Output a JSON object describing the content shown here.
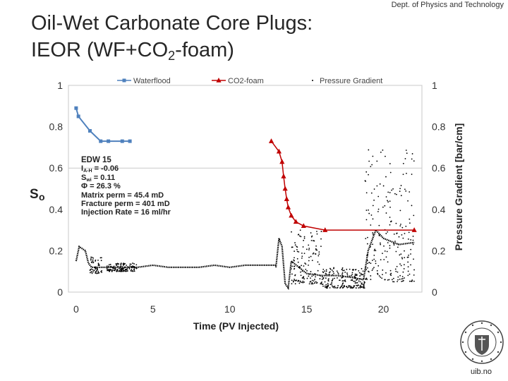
{
  "header": {
    "dept": "Dept. of Physics and Technology",
    "title_line1": "Oil-Wet Carbonate Core Plugs:",
    "title_line2_pre": "IEOR (WF+CO",
    "title_line2_sub": "2",
    "title_line2_post": "-foam)"
  },
  "annotation": {
    "heading": "EDW 15",
    "iah_label": "I",
    "iah_sub": "A-H",
    "iah_value": " = -0.06",
    "swi_label": "S",
    "swi_sub": "wi",
    "swi_value": " = 0.11",
    "porosity": "Φ = 26.3 %",
    "matrix_perm": "Matrix perm = 45.4 mD",
    "fracture_perm": "Fracture perm = 401 mD",
    "injection_rate": "Injection Rate = 16 ml/hr"
  },
  "footer": {
    "site": "uib.no"
  },
  "colors": {
    "waterflood": "#4F81BD",
    "co2foam": "#C00000",
    "pressure": "#000000"
  },
  "chart_data": {
    "type": "line",
    "xlabel": "Time (PV Injected)",
    "ylabel": "So",
    "y2label": "Pressure Gradient [bar/cm]",
    "xlim": [
      -0.5,
      22.5
    ],
    "ylim": [
      0,
      1
    ],
    "y2lim": [
      0,
      1
    ],
    "x_ticks": [
      0,
      5,
      10,
      15,
      20
    ],
    "x_tick_labels": [
      "0",
      "5",
      "10",
      "15",
      "20"
    ],
    "y_ticks": [
      0,
      0.2,
      0.4,
      0.6,
      0.8,
      1
    ],
    "y_tick_labels": [
      "0",
      "0.2",
      "0.4",
      "0.6",
      "0.8",
      "1"
    ],
    "y2_ticks": [
      0,
      0.2,
      0.4,
      0.6,
      0.8,
      1
    ],
    "y2_tick_labels": [
      "0",
      "0.2",
      "0.4",
      "0.6",
      "0.8",
      "1"
    ],
    "legend_position": "top",
    "series": [
      {
        "name": "Waterflood",
        "marker": "square",
        "x": [
          0,
          0.15,
          0.9,
          1.6,
          2.1,
          3.0,
          3.5
        ],
        "y": [
          0.89,
          0.85,
          0.78,
          0.73,
          0.73,
          0.73,
          0.73
        ]
      },
      {
        "name": "CO2-foam",
        "marker": "triangle",
        "x": [
          12.7,
          13.2,
          13.4,
          13.5,
          13.6,
          13.7,
          13.8,
          14.0,
          14.3,
          14.8,
          16.2,
          22.0
        ],
        "y": [
          0.73,
          0.68,
          0.63,
          0.56,
          0.5,
          0.45,
          0.41,
          0.37,
          0.34,
          0.32,
          0.3,
          0.3
        ]
      },
      {
        "name": "Pressure Gradient",
        "marker": "dot",
        "segments": [
          {
            "x": [
              0.0,
              0.2,
              0.4,
              0.6,
              0.8,
              1.0,
              1.5,
              2.0,
              3.0,
              4.0,
              5.0,
              6.0,
              7.0,
              8.0,
              9.0,
              10.0,
              11.0,
              12.0,
              13.0
            ],
            "y": [
              0.15,
              0.22,
              0.21,
              0.2,
              0.14,
              0.12,
              0.12,
              0.12,
              0.12,
              0.12,
              0.13,
              0.12,
              0.12,
              0.12,
              0.13,
              0.12,
              0.13,
              0.13,
              0.13
            ]
          },
          {
            "x": [
              13.0,
              13.2,
              13.4,
              13.6,
              13.8,
              14.0,
              14.5,
              15.0,
              16.0,
              17.0,
              18.0,
              18.7,
              19.0,
              19.5,
              20.0,
              21.0,
              22.0
            ],
            "y": [
              0.12,
              0.26,
              0.22,
              0.04,
              0.02,
              0.15,
              0.12,
              0.09,
              0.08,
              0.08,
              0.07,
              0.06,
              0.2,
              0.3,
              0.26,
              0.23,
              0.24
            ]
          }
        ],
        "scatter_ranges": [
          {
            "x_from": 0.9,
            "x_to": 1.7,
            "y_from": 0.09,
            "y_to": 0.17
          },
          {
            "x_from": 2.0,
            "x_to": 4.0,
            "y_from": 0.1,
            "y_to": 0.14
          },
          {
            "x_from": 14.0,
            "x_to": 16.0,
            "y_from": 0.04,
            "y_to": 0.3
          },
          {
            "x_from": 16.0,
            "x_to": 18.8,
            "y_from": 0.02,
            "y_to": 0.12
          },
          {
            "x_from": 18.8,
            "x_to": 20.2,
            "y_from": 0.06,
            "y_to": 0.7
          },
          {
            "x_from": 20.2,
            "x_to": 22.0,
            "y_from": 0.05,
            "y_to": 0.7
          }
        ]
      }
    ]
  }
}
